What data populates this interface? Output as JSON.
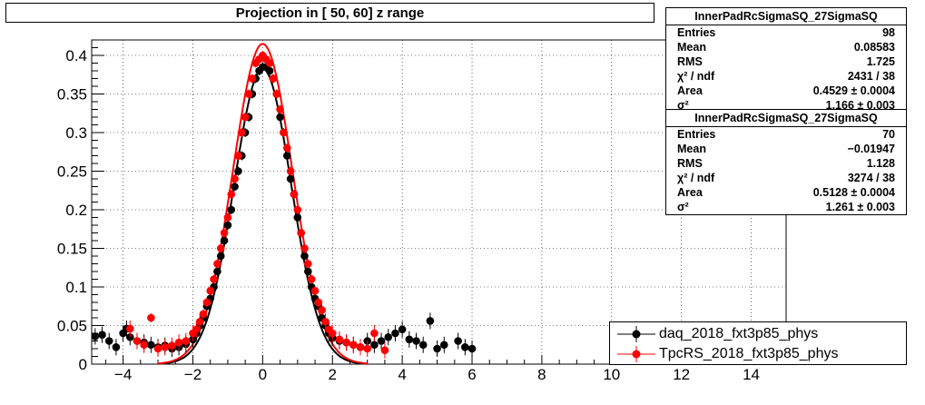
{
  "title": "Projection in [  50,  60] z range",
  "stats_boxes": [
    {
      "name": "InnerPadRcSigmaSQ_27SigmaSQ",
      "rows": [
        {
          "label": "Entries",
          "value": "98"
        },
        {
          "label": "Mean",
          "value": "0.08583"
        },
        {
          "label": "RMS",
          "value": "1.725"
        },
        {
          "label": "χ² / ndf",
          "value": "2431 / 38"
        },
        {
          "label": "Area",
          "value": "0.4529 ± 0.0004"
        },
        {
          "label": "σ²",
          "value": "1.166 ± 0.003"
        }
      ]
    },
    {
      "name": "InnerPadRcSigmaSQ_27SigmaSQ",
      "rows": [
        {
          "label": "Entries",
          "value": "70"
        },
        {
          "label": "Mean",
          "value": "−0.01947"
        },
        {
          "label": "RMS",
          "value": "1.128"
        },
        {
          "label": "χ² / ndf",
          "value": "3274 / 38"
        },
        {
          "label": "Area",
          "value": "0.5128 ± 0.0004"
        },
        {
          "label": "σ²",
          "value": "1.261 ± 0.003"
        }
      ]
    }
  ],
  "legend": [
    {
      "label": "daq_2018_fxt3p85_phys",
      "color": "#000000"
    },
    {
      "label": "TpcRS_2018_fxt3p85_phys",
      "color": "#ff0000"
    }
  ],
  "chart_data": {
    "type": "scatter",
    "title": "Projection in [  50,  60] z range",
    "xlabel": "",
    "ylabel": "",
    "xlim": [
      -4.9,
      15
    ],
    "ylim": [
      0,
      0.42
    ],
    "x_ticks": [
      "-4",
      "-2",
      "0",
      "2",
      "4",
      "6",
      "8",
      "10",
      "12",
      "14"
    ],
    "y_ticks": [
      "0",
      "0.05",
      "0.1",
      "0.15",
      "0.2",
      "0.25",
      "0.3",
      "0.35",
      "0.4"
    ],
    "grid": true,
    "legend_position": "bottom-right",
    "series": [
      {
        "name": "daq_2018_fxt3p85_phys",
        "color": "#000000",
        "points": [
          [
            -4.8,
            0.036
          ],
          [
            -4.6,
            0.038
          ],
          [
            -4.4,
            0.03
          ],
          [
            -4.2,
            0.022
          ],
          [
            -4.0,
            0.04
          ],
          [
            -3.9,
            0.046
          ],
          [
            -3.8,
            0.035
          ],
          [
            -3.6,
            0.03
          ],
          [
            -3.4,
            0.028
          ],
          [
            -3.2,
            0.025
          ],
          [
            -3.0,
            0.022
          ],
          [
            -2.8,
            0.024
          ],
          [
            -2.6,
            0.02
          ],
          [
            -2.4,
            0.022
          ],
          [
            -2.2,
            0.026
          ],
          [
            -2.0,
            0.032
          ],
          [
            -1.9,
            0.04
          ],
          [
            -1.8,
            0.05
          ],
          [
            -1.7,
            0.06
          ],
          [
            -1.6,
            0.075
          ],
          [
            -1.5,
            0.085
          ],
          [
            -1.4,
            0.1
          ],
          [
            -1.3,
            0.12
          ],
          [
            -1.2,
            0.14
          ],
          [
            -1.1,
            0.16
          ],
          [
            -1.0,
            0.18
          ],
          [
            -0.9,
            0.2
          ],
          [
            -0.8,
            0.23
          ],
          [
            -0.7,
            0.25
          ],
          [
            -0.6,
            0.27
          ],
          [
            -0.5,
            0.3
          ],
          [
            -0.4,
            0.32
          ],
          [
            -0.3,
            0.35
          ],
          [
            -0.2,
            0.37
          ],
          [
            -0.1,
            0.38
          ],
          [
            0.0,
            0.385
          ],
          [
            0.1,
            0.385
          ],
          [
            0.2,
            0.38
          ],
          [
            0.3,
            0.37
          ],
          [
            0.4,
            0.35
          ],
          [
            0.5,
            0.32
          ],
          [
            0.6,
            0.3
          ],
          [
            0.7,
            0.27
          ],
          [
            0.8,
            0.24
          ],
          [
            0.9,
            0.22
          ],
          [
            1.0,
            0.19
          ],
          [
            1.1,
            0.17
          ],
          [
            1.2,
            0.14
          ],
          [
            1.3,
            0.12
          ],
          [
            1.4,
            0.1
          ],
          [
            1.5,
            0.085
          ],
          [
            1.6,
            0.075
          ],
          [
            1.7,
            0.06
          ],
          [
            1.8,
            0.05
          ],
          [
            1.9,
            0.04
          ],
          [
            2.0,
            0.034
          ],
          [
            2.2,
            0.03
          ],
          [
            2.4,
            0.028
          ],
          [
            2.6,
            0.025
          ],
          [
            2.8,
            0.022
          ],
          [
            3.0,
            0.03
          ],
          [
            3.2,
            0.025
          ],
          [
            3.4,
            0.03
          ],
          [
            3.6,
            0.035
          ],
          [
            3.8,
            0.04
          ],
          [
            4.0,
            0.045
          ],
          [
            4.2,
            0.032
          ],
          [
            4.4,
            0.03
          ],
          [
            4.6,
            0.025
          ],
          [
            4.8,
            0.056
          ],
          [
            5.0,
            0.02
          ],
          [
            5.2,
            0.025
          ],
          [
            5.6,
            0.03
          ],
          [
            5.8,
            0.022
          ],
          [
            6.0,
            0.02
          ]
        ]
      },
      {
        "name": "TpcRS_2018_fxt3p85_phys",
        "color": "#ff0000",
        "points": [
          [
            -3.8,
            0.046
          ],
          [
            -3.6,
            0.03
          ],
          [
            -3.4,
            0.025
          ],
          [
            -3.2,
            0.06
          ],
          [
            -3.0,
            0.02
          ],
          [
            -2.8,
            0.022
          ],
          [
            -2.6,
            0.024
          ],
          [
            -2.4,
            0.028
          ],
          [
            -2.2,
            0.03
          ],
          [
            -2.0,
            0.04
          ],
          [
            -1.9,
            0.045
          ],
          [
            -1.8,
            0.055
          ],
          [
            -1.7,
            0.065
          ],
          [
            -1.6,
            0.08
          ],
          [
            -1.5,
            0.095
          ],
          [
            -1.4,
            0.11
          ],
          [
            -1.3,
            0.13
          ],
          [
            -1.2,
            0.15
          ],
          [
            -1.1,
            0.17
          ],
          [
            -1.0,
            0.19
          ],
          [
            -0.9,
            0.22
          ],
          [
            -0.8,
            0.24
          ],
          [
            -0.7,
            0.27
          ],
          [
            -0.6,
            0.3
          ],
          [
            -0.5,
            0.32
          ],
          [
            -0.4,
            0.35
          ],
          [
            -0.3,
            0.37
          ],
          [
            -0.2,
            0.39
          ],
          [
            -0.1,
            0.395
          ],
          [
            0.0,
            0.4
          ],
          [
            0.1,
            0.395
          ],
          [
            0.2,
            0.39
          ],
          [
            0.3,
            0.37
          ],
          [
            0.4,
            0.35
          ],
          [
            0.5,
            0.33
          ],
          [
            0.6,
            0.3
          ],
          [
            0.7,
            0.28
          ],
          [
            0.8,
            0.25
          ],
          [
            0.9,
            0.22
          ],
          [
            1.0,
            0.2
          ],
          [
            1.1,
            0.17
          ],
          [
            1.2,
            0.15
          ],
          [
            1.3,
            0.13
          ],
          [
            1.4,
            0.11
          ],
          [
            1.5,
            0.095
          ],
          [
            1.6,
            0.08
          ],
          [
            1.7,
            0.07
          ],
          [
            1.8,
            0.055
          ],
          [
            1.9,
            0.045
          ],
          [
            2.0,
            0.04
          ],
          [
            2.2,
            0.032
          ],
          [
            2.4,
            0.028
          ],
          [
            2.6,
            0.025
          ],
          [
            2.8,
            0.022
          ],
          [
            3.0,
            0.02
          ],
          [
            3.2,
            0.04
          ],
          [
            3.5,
            0.018
          ]
        ]
      }
    ],
    "fits": [
      {
        "series": "daq_2018_fxt3p85_phys",
        "color": "#000000",
        "peak": 0.383,
        "sigma": 0.82,
        "x_range": [
          -3.0,
          3.0
        ]
      },
      {
        "series": "TpcRS_2018_fxt3p85_phys",
        "color": "#ff0000",
        "peak": 0.415,
        "sigma": 0.85,
        "x_range": [
          -3.0,
          3.0
        ]
      }
    ]
  }
}
